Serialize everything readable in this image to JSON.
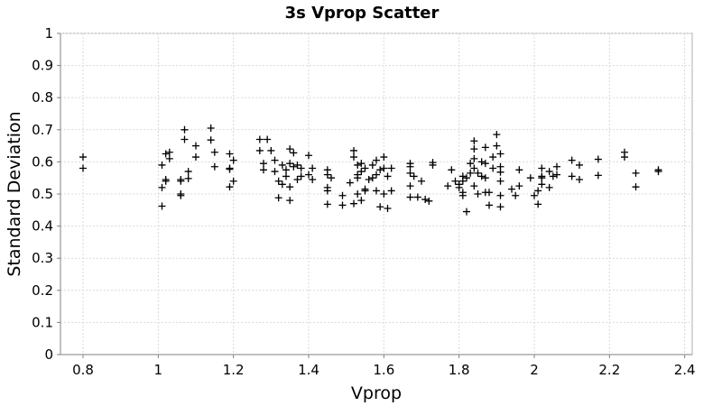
{
  "chart_data": {
    "type": "scatter",
    "title": "3s Vprop Scatter",
    "xlabel": "Vprop",
    "ylabel": "Standard Deviation",
    "xlim": [
      0.74,
      2.42
    ],
    "ylim": [
      0,
      1
    ],
    "xticks": [
      0.8,
      1,
      1.2,
      1.4,
      1.6,
      1.8,
      2,
      2.2,
      2.4
    ],
    "xtick_labels": [
      "0.8",
      "1",
      "1.2",
      "1.4",
      "1.6",
      "1.8",
      "2",
      "2.2",
      "2.4"
    ],
    "yticks": [
      0,
      0.1,
      0.2,
      0.3,
      0.4,
      0.5,
      0.6,
      0.7,
      0.8,
      0.9,
      1
    ],
    "ytick_labels": [
      "0",
      "0.1",
      "0.2",
      "0.3",
      "0.4",
      "0.5",
      "0.6",
      "0.7",
      "0.8",
      "0.9",
      "1"
    ],
    "grid": true,
    "marker": "plus",
    "marker_color": "#000000",
    "points": [
      [
        0.8,
        0.615
      ],
      [
        0.8,
        0.58
      ],
      [
        1.01,
        0.462
      ],
      [
        1.01,
        0.52
      ],
      [
        1.01,
        0.59
      ],
      [
        1.02,
        0.54
      ],
      [
        1.02,
        0.545
      ],
      [
        1.02,
        0.625
      ],
      [
        1.03,
        0.63
      ],
      [
        1.03,
        0.61
      ],
      [
        1.06,
        0.54
      ],
      [
        1.06,
        0.545
      ],
      [
        1.06,
        0.495
      ],
      [
        1.06,
        0.5
      ],
      [
        1.07,
        0.67
      ],
      [
        1.07,
        0.7
      ],
      [
        1.08,
        0.57
      ],
      [
        1.08,
        0.548
      ],
      [
        1.1,
        0.65
      ],
      [
        1.1,
        0.615
      ],
      [
        1.14,
        0.705
      ],
      [
        1.14,
        0.668
      ],
      [
        1.15,
        0.585
      ],
      [
        1.15,
        0.63
      ],
      [
        1.19,
        0.58
      ],
      [
        1.19,
        0.625
      ],
      [
        1.19,
        0.577
      ],
      [
        1.19,
        0.522
      ],
      [
        1.2,
        0.605
      ],
      [
        1.2,
        0.54
      ],
      [
        1.27,
        0.67
      ],
      [
        1.27,
        0.635
      ],
      [
        1.28,
        0.595
      ],
      [
        1.28,
        0.575
      ],
      [
        1.29,
        0.67
      ],
      [
        1.3,
        0.635
      ],
      [
        1.31,
        0.605
      ],
      [
        1.31,
        0.57
      ],
      [
        1.32,
        0.488
      ],
      [
        1.32,
        0.54
      ],
      [
        1.33,
        0.59
      ],
      [
        1.33,
        0.53
      ],
      [
        1.34,
        0.575
      ],
      [
        1.34,
        0.555
      ],
      [
        1.35,
        0.64
      ],
      [
        1.35,
        0.595
      ],
      [
        1.35,
        0.522
      ],
      [
        1.35,
        0.48
      ],
      [
        1.36,
        0.585
      ],
      [
        1.36,
        0.628
      ],
      [
        1.37,
        0.59
      ],
      [
        1.37,
        0.545
      ],
      [
        1.38,
        0.58
      ],
      [
        1.38,
        0.555
      ],
      [
        1.4,
        0.62
      ],
      [
        1.4,
        0.56
      ],
      [
        1.41,
        0.58
      ],
      [
        1.41,
        0.545
      ],
      [
        1.45,
        0.575
      ],
      [
        1.45,
        0.56
      ],
      [
        1.45,
        0.52
      ],
      [
        1.45,
        0.51
      ],
      [
        1.45,
        0.468
      ],
      [
        1.46,
        0.55
      ],
      [
        1.49,
        0.495
      ],
      [
        1.49,
        0.465
      ],
      [
        1.51,
        0.535
      ],
      [
        1.52,
        0.47
      ],
      [
        1.52,
        0.635
      ],
      [
        1.52,
        0.615
      ],
      [
        1.53,
        0.59
      ],
      [
        1.53,
        0.56
      ],
      [
        1.53,
        0.55
      ],
      [
        1.53,
        0.5
      ],
      [
        1.54,
        0.595
      ],
      [
        1.54,
        0.57
      ],
      [
        1.54,
        0.48
      ],
      [
        1.55,
        0.58
      ],
      [
        1.55,
        0.515
      ],
      [
        1.55,
        0.51
      ],
      [
        1.56,
        0.545
      ],
      [
        1.57,
        0.59
      ],
      [
        1.57,
        0.55
      ],
      [
        1.58,
        0.605
      ],
      [
        1.58,
        0.56
      ],
      [
        1.58,
        0.51
      ],
      [
        1.59,
        0.575
      ],
      [
        1.59,
        0.46
      ],
      [
        1.6,
        0.615
      ],
      [
        1.6,
        0.58
      ],
      [
        1.6,
        0.5
      ],
      [
        1.61,
        0.555
      ],
      [
        1.61,
        0.455
      ],
      [
        1.62,
        0.58
      ],
      [
        1.62,
        0.51
      ],
      [
        1.67,
        0.595
      ],
      [
        1.67,
        0.585
      ],
      [
        1.67,
        0.565
      ],
      [
        1.67,
        0.525
      ],
      [
        1.67,
        0.49
      ],
      [
        1.68,
        0.555
      ],
      [
        1.69,
        0.49
      ],
      [
        1.7,
        0.54
      ],
      [
        1.71,
        0.483
      ],
      [
        1.72,
        0.478
      ],
      [
        1.73,
        0.598
      ],
      [
        1.73,
        0.59
      ],
      [
        1.77,
        0.525
      ],
      [
        1.78,
        0.575
      ],
      [
        1.79,
        0.54
      ],
      [
        1.8,
        0.53
      ],
      [
        1.8,
        0.52
      ],
      [
        1.81,
        0.555
      ],
      [
        1.81,
        0.54
      ],
      [
        1.81,
        0.505
      ],
      [
        1.81,
        0.495
      ],
      [
        1.82,
        0.445
      ],
      [
        1.82,
        0.55
      ],
      [
        1.83,
        0.595
      ],
      [
        1.83,
        0.565
      ],
      [
        1.84,
        0.665
      ],
      [
        1.84,
        0.64
      ],
      [
        1.84,
        0.61
      ],
      [
        1.84,
        0.58
      ],
      [
        1.84,
        0.525
      ],
      [
        1.85,
        0.565
      ],
      [
        1.85,
        0.5
      ],
      [
        1.86,
        0.6
      ],
      [
        1.86,
        0.555
      ],
      [
        1.87,
        0.645
      ],
      [
        1.87,
        0.595
      ],
      [
        1.87,
        0.55
      ],
      [
        1.87,
        0.505
      ],
      [
        1.88,
        0.505
      ],
      [
        1.88,
        0.465
      ],
      [
        1.89,
        0.615
      ],
      [
        1.89,
        0.58
      ],
      [
        1.9,
        0.685
      ],
      [
        1.9,
        0.65
      ],
      [
        1.91,
        0.625
      ],
      [
        1.91,
        0.585
      ],
      [
        1.91,
        0.568
      ],
      [
        1.91,
        0.54
      ],
      [
        1.91,
        0.495
      ],
      [
        1.91,
        0.46
      ],
      [
        1.94,
        0.515
      ],
      [
        1.95,
        0.495
      ],
      [
        1.96,
        0.575
      ],
      [
        1.96,
        0.525
      ],
      [
        1.99,
        0.55
      ],
      [
        2.0,
        0.495
      ],
      [
        2.01,
        0.51
      ],
      [
        2.01,
        0.468
      ],
      [
        2.02,
        0.58
      ],
      [
        2.02,
        0.555
      ],
      [
        2.02,
        0.55
      ],
      [
        2.02,
        0.53
      ],
      [
        2.04,
        0.57
      ],
      [
        2.04,
        0.52
      ],
      [
        2.05,
        0.555
      ],
      [
        2.06,
        0.585
      ],
      [
        2.06,
        0.56
      ],
      [
        2.1,
        0.605
      ],
      [
        2.1,
        0.555
      ],
      [
        2.12,
        0.59
      ],
      [
        2.12,
        0.545
      ],
      [
        2.17,
        0.608
      ],
      [
        2.17,
        0.558
      ],
      [
        2.24,
        0.63
      ],
      [
        2.24,
        0.615
      ],
      [
        2.27,
        0.565
      ],
      [
        2.27,
        0.522
      ],
      [
        2.33,
        0.575
      ],
      [
        2.33,
        0.57
      ]
    ]
  }
}
